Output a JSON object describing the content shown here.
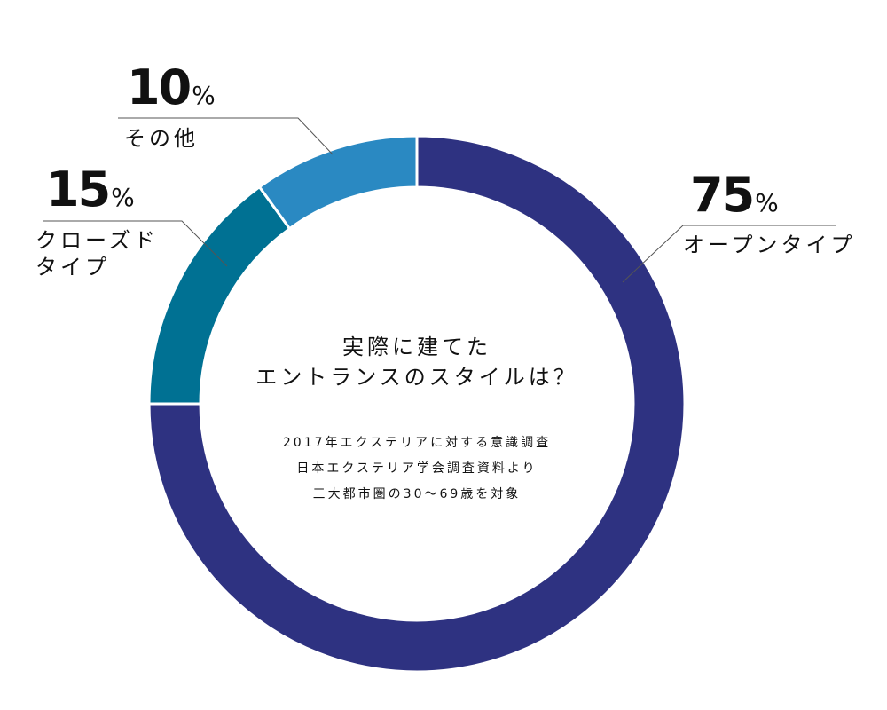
{
  "chart_data": {
    "type": "pie",
    "variant": "donut",
    "center_title": [
      "実際に建てた",
      "エントランスのスタイルは？"
    ],
    "center_note": [
      "2017年エクステリアに対する意識調査",
      "日本エクステリア学会調査資料より",
      "三大都市圏の30～69歳を対象"
    ],
    "slices": [
      {
        "label": [
          "オープンタイプ"
        ],
        "value": 75,
        "value_text": "75",
        "unit": "%",
        "color": "#2e3281"
      },
      {
        "label": [
          "クローズド",
          "タイプ"
        ],
        "value": 15,
        "value_text": "15",
        "unit": "%",
        "color": "#007193"
      },
      {
        "label": [
          "その他"
        ],
        "value": 10,
        "value_text": "10",
        "unit": "%",
        "color": "#2a89c2"
      }
    ],
    "start": "top",
    "direction": "clockwise",
    "legend": "none"
  }
}
